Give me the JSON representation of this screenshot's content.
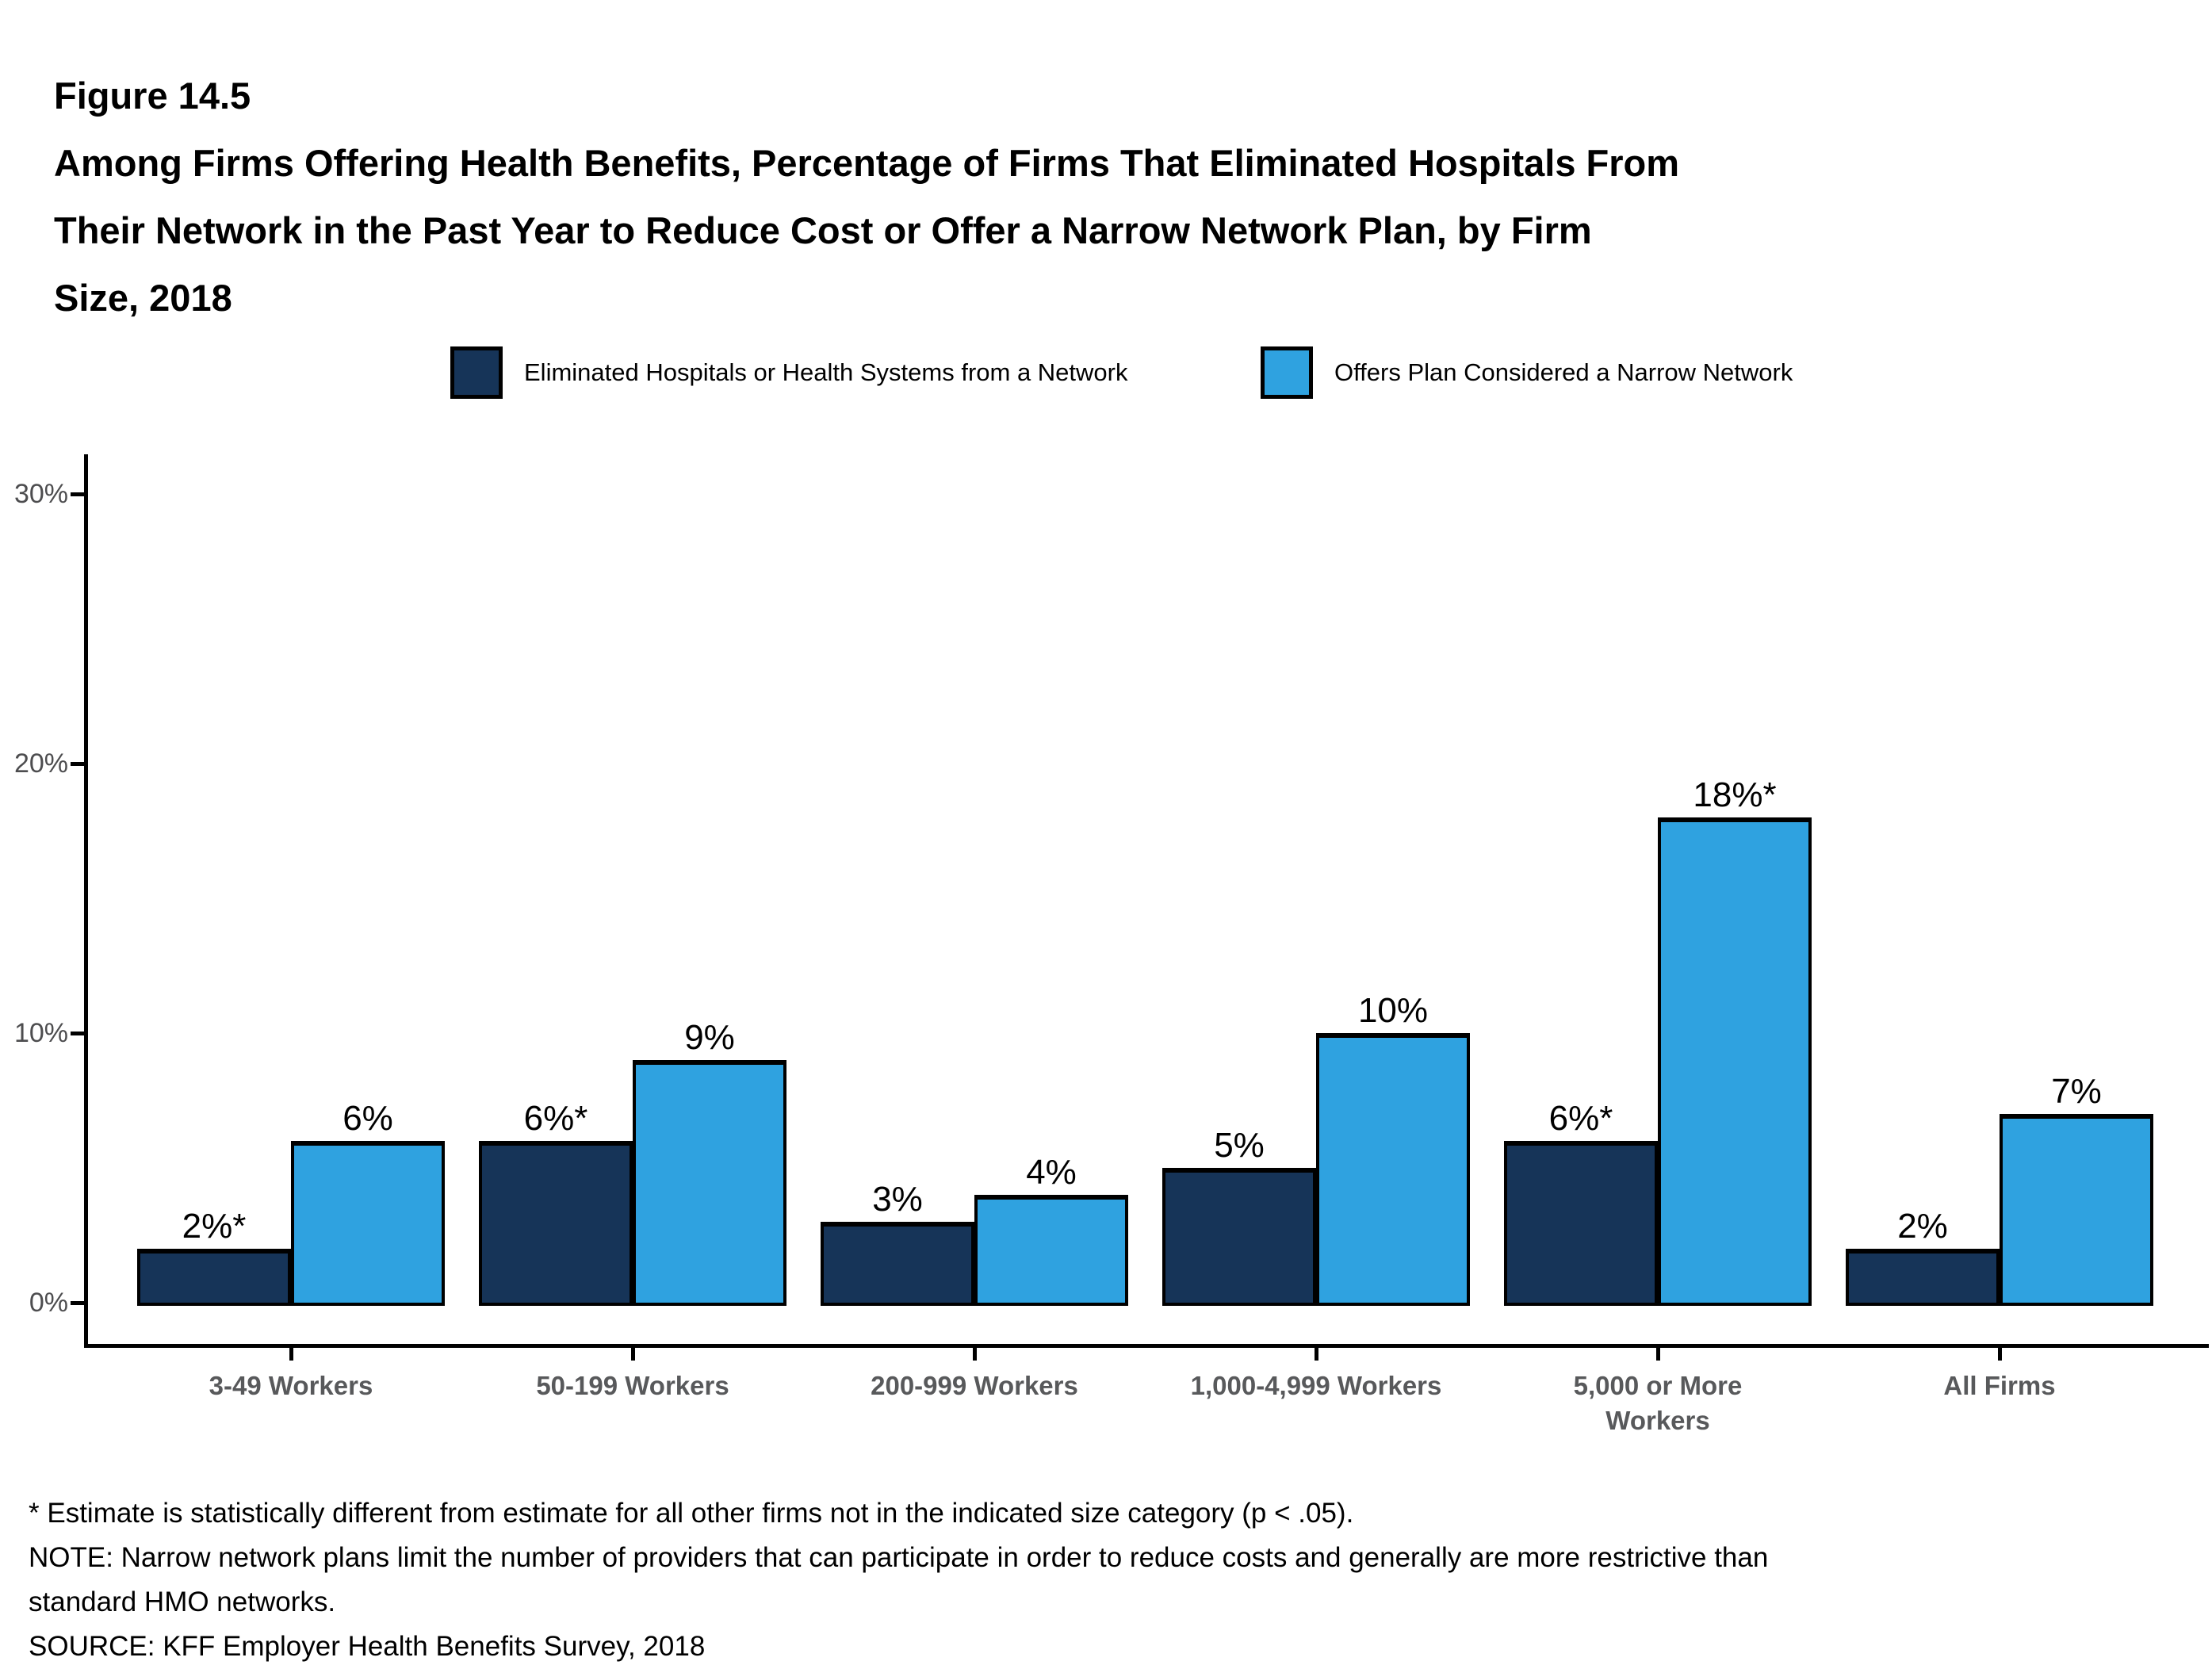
{
  "header": {
    "figure_label": "Figure 14.5",
    "title_lines": [
      "Among Firms Offering Health Benefits, Percentage of Firms That Eliminated Hospitals From",
      "Their Network in the Past Year to Reduce Cost or Offer a Narrow Network Plan, by Firm",
      "Size, 2018"
    ]
  },
  "chart_data": {
    "type": "bar",
    "title": "Among Firms Offering Health Benefits, Percentage of Firms That Eliminated Hospitals From Their Network in the Past Year to Reduce Cost or Offer a Narrow Network Plan, by Firm Size, 2018",
    "categories": [
      "3-49 Workers",
      "50-199 Workers",
      "200-999 Workers",
      "1,000-4,999 Workers",
      "5,000 or More\nWorkers",
      "All Firms"
    ],
    "series": [
      {
        "name": "Eliminated Hospitals or Health Systems from a Network",
        "color": "#163458",
        "values": [
          2,
          6,
          3,
          5,
          6,
          2
        ],
        "labels": [
          "2%*",
          "6%*",
          "3%",
          "5%",
          "6%*",
          "2%"
        ]
      },
      {
        "name": "Offers Plan Considered a Narrow Network",
        "color": "#2fa2e0",
        "values": [
          6,
          9,
          4,
          10,
          18,
          7
        ],
        "labels": [
          "6%",
          "9%",
          "4%",
          "10%",
          "18%*",
          "7%"
        ]
      }
    ],
    "y_axis": {
      "unit": "%",
      "ticks": [
        0,
        10,
        20,
        30
      ],
      "tick_labels": [
        "0%",
        "10%",
        "20%",
        "30%"
      ],
      "range": [
        0,
        31.5
      ]
    },
    "legend_position": "top",
    "grid": false
  },
  "footnotes": {
    "lines": [
      "* Estimate is statistically different from estimate for all other firms not in the indicated size category (p < .05).",
      "NOTE: Narrow network plans limit the number of providers that can participate in order to reduce costs and generally are more restrictive than",
      "standard HMO networks.",
      "SOURCE: KFF Employer Health Benefits Survey, 2018"
    ]
  }
}
